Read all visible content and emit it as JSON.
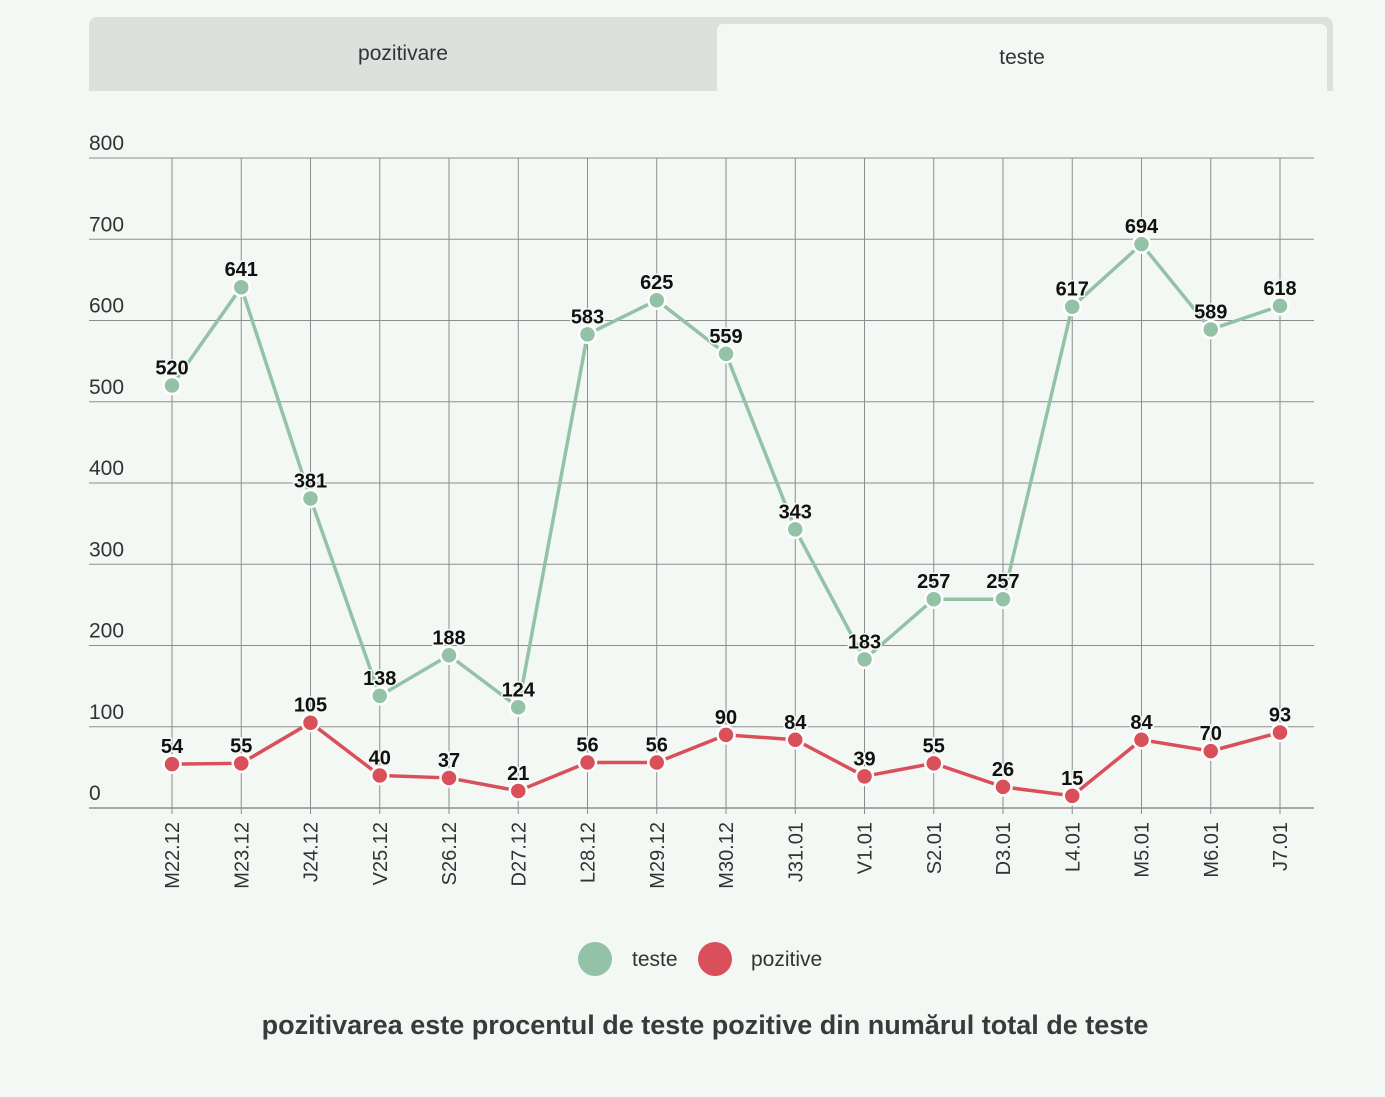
{
  "tabs": [
    {
      "label": "pozitivare",
      "active": false
    },
    {
      "label": "teste",
      "active": true
    }
  ],
  "colors": {
    "teste": "#93c2a7",
    "pozitive": "#d9505a",
    "grid": "#8d8d8d",
    "background": "#f4f8f4"
  },
  "chart_data": {
    "type": "line",
    "categories": [
      "M22.12",
      "M23.12",
      "J24.12",
      "V25.12",
      "S26.12",
      "D27.12",
      "L28.12",
      "M29.12",
      "M30.12",
      "J31.01",
      "V1.01",
      "S2.01",
      "D3.01",
      "L4.01",
      "M5.01",
      "M6.01",
      "J7.01"
    ],
    "series": [
      {
        "name": "teste",
        "values": [
          520,
          641,
          381,
          138,
          188,
          124,
          583,
          625,
          559,
          343,
          183,
          257,
          257,
          617,
          694,
          589,
          618
        ]
      },
      {
        "name": "pozitive",
        "values": [
          54,
          55,
          105,
          40,
          37,
          21,
          56,
          56,
          90,
          84,
          39,
          55,
          26,
          15,
          84,
          70,
          93
        ]
      }
    ],
    "yticks": [
      0,
      100,
      200,
      300,
      400,
      500,
      600,
      700,
      800
    ],
    "ylim": [
      0,
      800
    ],
    "grid": true,
    "legend_position": "bottom-center"
  },
  "legend": [
    {
      "label": "teste"
    },
    {
      "label": "pozitive"
    }
  ],
  "footnote": "pozitivarea este procentul de teste pozitive din numărul total de teste"
}
